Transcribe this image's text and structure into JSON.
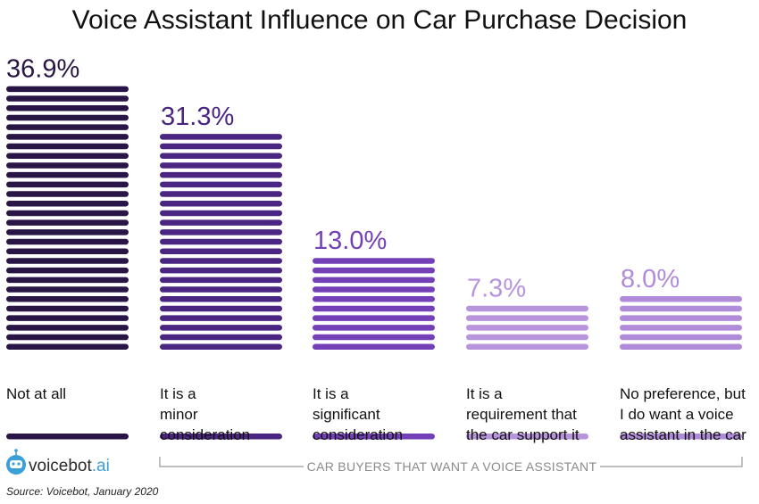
{
  "chart_data": {
    "type": "bar",
    "title": "Voice Assistant Influence on Car Purchase Decision",
    "unit": "%",
    "categories": [
      "Not at all",
      "It is a minor consideration",
      "It is a significant consideration",
      "It is a requirement that the car support it",
      "No preference, but I do want a voice assistant in the car"
    ],
    "category_lines": [
      [
        "Not at all"
      ],
      [
        "It is a",
        "minor",
        "consideration"
      ],
      [
        "It is a",
        "significant",
        "consideration"
      ],
      [
        "It is a",
        "requirement that",
        "the car support it"
      ],
      [
        "No preference, but",
        "I do want a voice",
        "assistant in the car"
      ]
    ],
    "values": [
      36.9,
      31.3,
      13.0,
      7.3,
      8.0
    ],
    "value_labels": [
      "36.9%",
      "31.3%",
      "13.0%",
      "7.3%",
      "8.0%"
    ],
    "ylim": [
      0,
      40
    ],
    "grid": false,
    "legend": "none",
    "colors": [
      "#2a1547",
      "#4a2582",
      "#7340b8",
      "#b894dc",
      "#b08bd9"
    ]
  },
  "group_label": "CAR BUYERS THAT WANT A VOICE ASSISTANT",
  "brand": {
    "name": "voicebot",
    "suffix": ".ai",
    "accent": "#3b9fd8"
  },
  "source": "Source: Voicebot, January 2020"
}
